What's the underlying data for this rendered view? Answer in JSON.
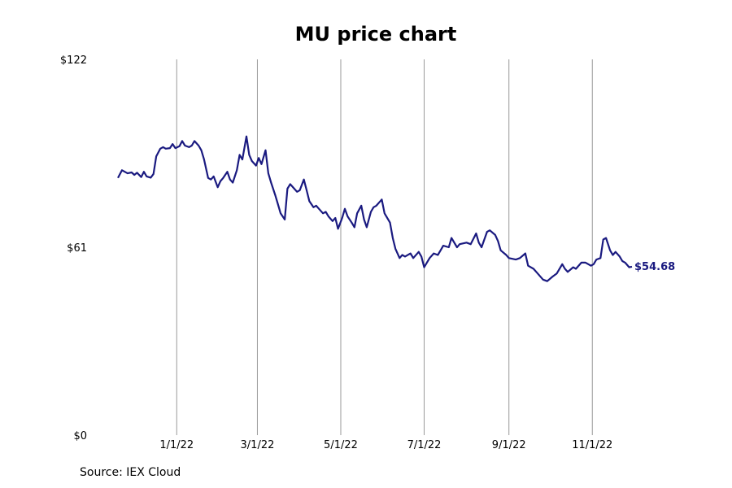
{
  "chart_data": {
    "type": "line",
    "title": "MU price chart",
    "source": "Source: IEX Cloud",
    "xlabel": "",
    "ylabel": "",
    "x_range": [
      "2021-11-19",
      "2022-11-30"
    ],
    "ylim": [
      0,
      122
    ],
    "y_ticks": [
      {
        "value": 0,
        "label": "$0"
      },
      {
        "value": 61,
        "label": "$61"
      },
      {
        "value": 122,
        "label": "$122"
      }
    ],
    "x_ticks": [
      {
        "date": "2022-01-01",
        "label": "1/1/22"
      },
      {
        "date": "2022-03-01",
        "label": "3/1/22"
      },
      {
        "date": "2022-05-01",
        "label": "5/1/22"
      },
      {
        "date": "2022-07-01",
        "label": "7/1/22"
      },
      {
        "date": "2022-09-01",
        "label": "9/1/22"
      },
      {
        "date": "2022-11-01",
        "label": "11/1/22"
      }
    ],
    "vertical_gridlines": true,
    "line_color": "#1a1a80",
    "last_value_label": "$54.68",
    "series": [
      {
        "points": [
          [
            "2021-11-19",
            83.5
          ],
          [
            "2021-11-22",
            86.0
          ],
          [
            "2021-11-24",
            85.5
          ],
          [
            "2021-11-26",
            85.0
          ],
          [
            "2021-11-29",
            85.3
          ],
          [
            "2021-12-01",
            84.5
          ],
          [
            "2021-12-03",
            85.2
          ],
          [
            "2021-12-06",
            83.8
          ],
          [
            "2021-12-08",
            85.5
          ],
          [
            "2021-12-10",
            84.0
          ],
          [
            "2021-12-13",
            83.6
          ],
          [
            "2021-12-15",
            84.8
          ],
          [
            "2021-12-17",
            90.5
          ],
          [
            "2021-12-20",
            93.0
          ],
          [
            "2021-12-22",
            93.5
          ],
          [
            "2021-12-24",
            93.0
          ],
          [
            "2021-12-27",
            93.2
          ],
          [
            "2021-12-29",
            94.5
          ],
          [
            "2021-12-31",
            93.2
          ],
          [
            "2022-01-03",
            93.8
          ],
          [
            "2022-01-05",
            95.5
          ],
          [
            "2022-01-07",
            94.0
          ],
          [
            "2022-01-10",
            93.5
          ],
          [
            "2022-01-12",
            94.0
          ],
          [
            "2022-01-14",
            95.5
          ],
          [
            "2022-01-17",
            94.0
          ],
          [
            "2022-01-19",
            92.5
          ],
          [
            "2022-01-21",
            89.5
          ],
          [
            "2022-01-24",
            83.5
          ],
          [
            "2022-01-26",
            83.0
          ],
          [
            "2022-01-28",
            84.0
          ],
          [
            "2022-01-31",
            80.5
          ],
          [
            "2022-02-02",
            82.5
          ],
          [
            "2022-02-04",
            83.5
          ],
          [
            "2022-02-07",
            85.5
          ],
          [
            "2022-02-09",
            83.0
          ],
          [
            "2022-02-11",
            82.0
          ],
          [
            "2022-02-14",
            86.0
          ],
          [
            "2022-02-16",
            91.0
          ],
          [
            "2022-02-18",
            89.5
          ],
          [
            "2022-02-21",
            97.0
          ],
          [
            "2022-02-23",
            91.0
          ],
          [
            "2022-02-25",
            89.0
          ],
          [
            "2022-02-28",
            87.5
          ],
          [
            "2022-03-02",
            90.0
          ],
          [
            "2022-03-04",
            88.0
          ],
          [
            "2022-03-07",
            92.5
          ],
          [
            "2022-03-09",
            85.0
          ],
          [
            "2022-03-11",
            82.0
          ],
          [
            "2022-03-14",
            78.0
          ],
          [
            "2022-03-16",
            75.0
          ],
          [
            "2022-03-18",
            72.0
          ],
          [
            "2022-03-21",
            70.0
          ],
          [
            "2022-03-23",
            80.0
          ],
          [
            "2022-03-25",
            81.5
          ],
          [
            "2022-03-28",
            80.0
          ],
          [
            "2022-03-30",
            79.0
          ],
          [
            "2022-04-01",
            79.5
          ],
          [
            "2022-04-04",
            83.0
          ],
          [
            "2022-04-06",
            79.5
          ],
          [
            "2022-04-08",
            76.0
          ],
          [
            "2022-04-11",
            74.0
          ],
          [
            "2022-04-13",
            74.5
          ],
          [
            "2022-04-15",
            73.5
          ],
          [
            "2022-04-18",
            72.0
          ],
          [
            "2022-04-20",
            72.5
          ],
          [
            "2022-04-22",
            71.0
          ],
          [
            "2022-04-25",
            69.5
          ],
          [
            "2022-04-27",
            70.5
          ],
          [
            "2022-04-29",
            67.0
          ],
          [
            "2022-05-02",
            70.5
          ],
          [
            "2022-05-04",
            73.5
          ],
          [
            "2022-05-06",
            71.0
          ],
          [
            "2022-05-09",
            69.0
          ],
          [
            "2022-05-11",
            67.5
          ],
          [
            "2022-05-13",
            72.0
          ],
          [
            "2022-05-16",
            74.5
          ],
          [
            "2022-05-18",
            70.0
          ],
          [
            "2022-05-20",
            67.5
          ],
          [
            "2022-05-23",
            72.5
          ],
          [
            "2022-05-25",
            74.0
          ],
          [
            "2022-05-27",
            74.5
          ],
          [
            "2022-05-31",
            76.5
          ],
          [
            "2022-06-02",
            72.0
          ],
          [
            "2022-06-06",
            69.0
          ],
          [
            "2022-06-08",
            64.0
          ],
          [
            "2022-06-10",
            60.5
          ],
          [
            "2022-06-13",
            57.5
          ],
          [
            "2022-06-15",
            58.5
          ],
          [
            "2022-06-17",
            58.0
          ],
          [
            "2022-06-21",
            59.0
          ],
          [
            "2022-06-23",
            57.5
          ],
          [
            "2022-06-27",
            59.5
          ],
          [
            "2022-06-29",
            58.0
          ],
          [
            "2022-07-01",
            54.5
          ],
          [
            "2022-07-05",
            57.5
          ],
          [
            "2022-07-08",
            59.0
          ],
          [
            "2022-07-11",
            58.5
          ],
          [
            "2022-07-13",
            60.0
          ],
          [
            "2022-07-15",
            61.5
          ],
          [
            "2022-07-19",
            61.0
          ],
          [
            "2022-07-21",
            64.0
          ],
          [
            "2022-07-25",
            61.0
          ],
          [
            "2022-07-27",
            62.0
          ],
          [
            "2022-08-01",
            62.5
          ],
          [
            "2022-08-04",
            62.0
          ],
          [
            "2022-08-08",
            65.5
          ],
          [
            "2022-08-10",
            62.5
          ],
          [
            "2022-08-12",
            61.0
          ],
          [
            "2022-08-16",
            66.0
          ],
          [
            "2022-08-18",
            66.5
          ],
          [
            "2022-08-22",
            65.0
          ],
          [
            "2022-08-24",
            63.0
          ],
          [
            "2022-08-26",
            60.0
          ],
          [
            "2022-08-30",
            58.5
          ],
          [
            "2022-09-01",
            57.5
          ],
          [
            "2022-09-06",
            57.0
          ],
          [
            "2022-09-09",
            57.5
          ],
          [
            "2022-09-13",
            59.0
          ],
          [
            "2022-09-15",
            55.0
          ],
          [
            "2022-09-19",
            54.0
          ],
          [
            "2022-09-22",
            52.5
          ],
          [
            "2022-09-26",
            50.5
          ],
          [
            "2022-09-29",
            50.0
          ],
          [
            "2022-10-03",
            51.5
          ],
          [
            "2022-10-06",
            52.5
          ],
          [
            "2022-10-10",
            55.5
          ],
          [
            "2022-10-12",
            54.0
          ],
          [
            "2022-10-14",
            53.0
          ],
          [
            "2022-10-18",
            54.5
          ],
          [
            "2022-10-20",
            54.0
          ],
          [
            "2022-10-24",
            56.0
          ],
          [
            "2022-10-27",
            56.0
          ],
          [
            "2022-10-31",
            55.0
          ],
          [
            "2022-11-02",
            55.5
          ],
          [
            "2022-11-04",
            57.0
          ],
          [
            "2022-11-07",
            57.5
          ],
          [
            "2022-11-09",
            63.5
          ],
          [
            "2022-11-11",
            64.0
          ],
          [
            "2022-11-14",
            60.0
          ],
          [
            "2022-11-16",
            58.5
          ],
          [
            "2022-11-18",
            59.5
          ],
          [
            "2022-11-21",
            58.0
          ],
          [
            "2022-11-23",
            56.5
          ],
          [
            "2022-11-25",
            56.0
          ],
          [
            "2022-11-28",
            54.5
          ],
          [
            "2022-11-30",
            54.68
          ]
        ]
      }
    ]
  }
}
